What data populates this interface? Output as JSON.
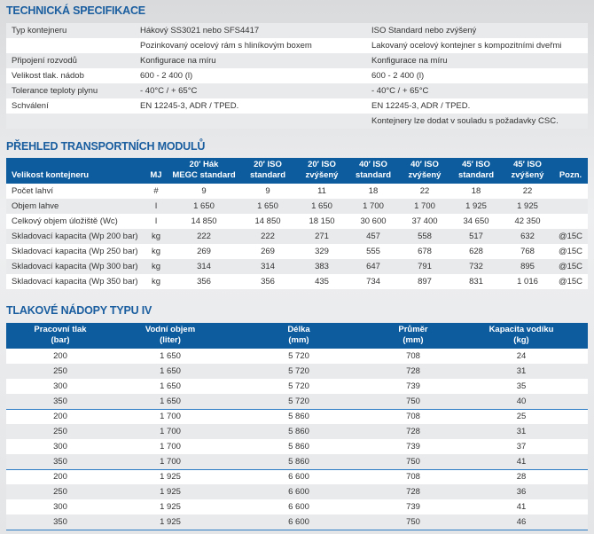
{
  "spec": {
    "title": "TECHNICKÁ SPECIFIKACE",
    "rows": [
      [
        "Typ kontejneru",
        "Hákový SS3021 nebo SFS4417",
        "ISO Standard nebo zvýšený"
      ],
      [
        "",
        "Pozinkovaný ocelový rám s hliníkovým boxem",
        "Lakovaný ocelový kontejner s kompozitními dveřmi"
      ],
      [
        "Připojení rozvodů",
        "Konfigurace na míru",
        "Konfigurace na míru"
      ],
      [
        "Velikost tlak. nádob",
        "600 - 2 400 (l)",
        "600 - 2 400 (l)"
      ],
      [
        "Tolerance teploty plynu",
        "- 40°C / + 65°C",
        "- 40°C / + 65°C"
      ],
      [
        "Schválení",
        "EN 12245-3, ADR / TPED.",
        "EN 12245-3, ADR / TPED."
      ],
      [
        "",
        "",
        "Kontejnery lze dodat v souladu s požadavky CSC."
      ]
    ]
  },
  "modules": {
    "title": "PŘEHLED TRANSPORTNÍCH MODULŮ",
    "headers": [
      [
        "",
        "Velikost kontejneru"
      ],
      [
        "",
        "MJ"
      ],
      [
        "20′ Hák",
        "MEGC standard"
      ],
      [
        "20′ ISO",
        "standard"
      ],
      [
        "20′ ISO",
        "zvýšený"
      ],
      [
        "40′ ISO",
        "standard"
      ],
      [
        "40′ ISO",
        "zvýšený"
      ],
      [
        "45′ ISO",
        "standard"
      ],
      [
        "45′ ISO",
        "zvýšený"
      ],
      [
        "",
        "Pozn."
      ]
    ],
    "rows": [
      [
        "Počet lahví",
        "#",
        "9",
        "9",
        "11",
        "18",
        "22",
        "18",
        "22",
        ""
      ],
      [
        "Objem lahve",
        "l",
        "1 650",
        "1 650",
        "1 650",
        "1 700",
        "1 700",
        "1 925",
        "1 925",
        ""
      ],
      [
        "Celkový objem úložiště (Wc)",
        "l",
        "14 850",
        "14 850",
        "18 150",
        "30 600",
        "37 400",
        "34 650",
        "42 350",
        ""
      ],
      [
        "Skladovací kapacita (Wp 200 bar)",
        "kg",
        "222",
        "222",
        "271",
        "457",
        "558",
        "517",
        "632",
        "@15C"
      ],
      [
        "Skladovací kapacita (Wp 250 bar)",
        "kg",
        "269",
        "269",
        "329",
        "555",
        "678",
        "628",
        "768",
        "@15C"
      ],
      [
        "Skladovací kapacita (Wp 300 bar)",
        "kg",
        "314",
        "314",
        "383",
        "647",
        "791",
        "732",
        "895",
        "@15C"
      ],
      [
        "Skladovací kapacita (Wp 350 bar)",
        "kg",
        "356",
        "356",
        "435",
        "734",
        "897",
        "831",
        "1 016",
        "@15C"
      ]
    ]
  },
  "vessels": {
    "title": "TLAKOVÉ NÁDOPY TYPU IV",
    "headers": [
      [
        "Pracovní tlak",
        "(bar)"
      ],
      [
        "Vodní objem",
        "(liter)"
      ],
      [
        "Délka",
        "(mm)"
      ],
      [
        "Průměr",
        "(mm)"
      ],
      [
        "Kapacita vodíku",
        "(kg)"
      ]
    ],
    "rows": [
      [
        "200",
        "1 650",
        "5 720",
        "708",
        "24"
      ],
      [
        "250",
        "1 650",
        "5 720",
        "728",
        "31"
      ],
      [
        "300",
        "1 650",
        "5 720",
        "739",
        "35"
      ],
      [
        "350",
        "1 650",
        "5 720",
        "750",
        "40"
      ],
      [
        "200",
        "1 700",
        "5 860",
        "708",
        "25"
      ],
      [
        "250",
        "1 700",
        "5 860",
        "728",
        "31"
      ],
      [
        "300",
        "1 700",
        "5 860",
        "739",
        "37"
      ],
      [
        "350",
        "1 700",
        "5 860",
        "750",
        "41"
      ],
      [
        "200",
        "1 925",
        "6 600",
        "708",
        "28"
      ],
      [
        "250",
        "1 925",
        "6 600",
        "728",
        "36"
      ],
      [
        "300",
        "1 925",
        "6 600",
        "739",
        "41"
      ],
      [
        "350",
        "1 925",
        "6 600",
        "750",
        "46"
      ]
    ]
  }
}
